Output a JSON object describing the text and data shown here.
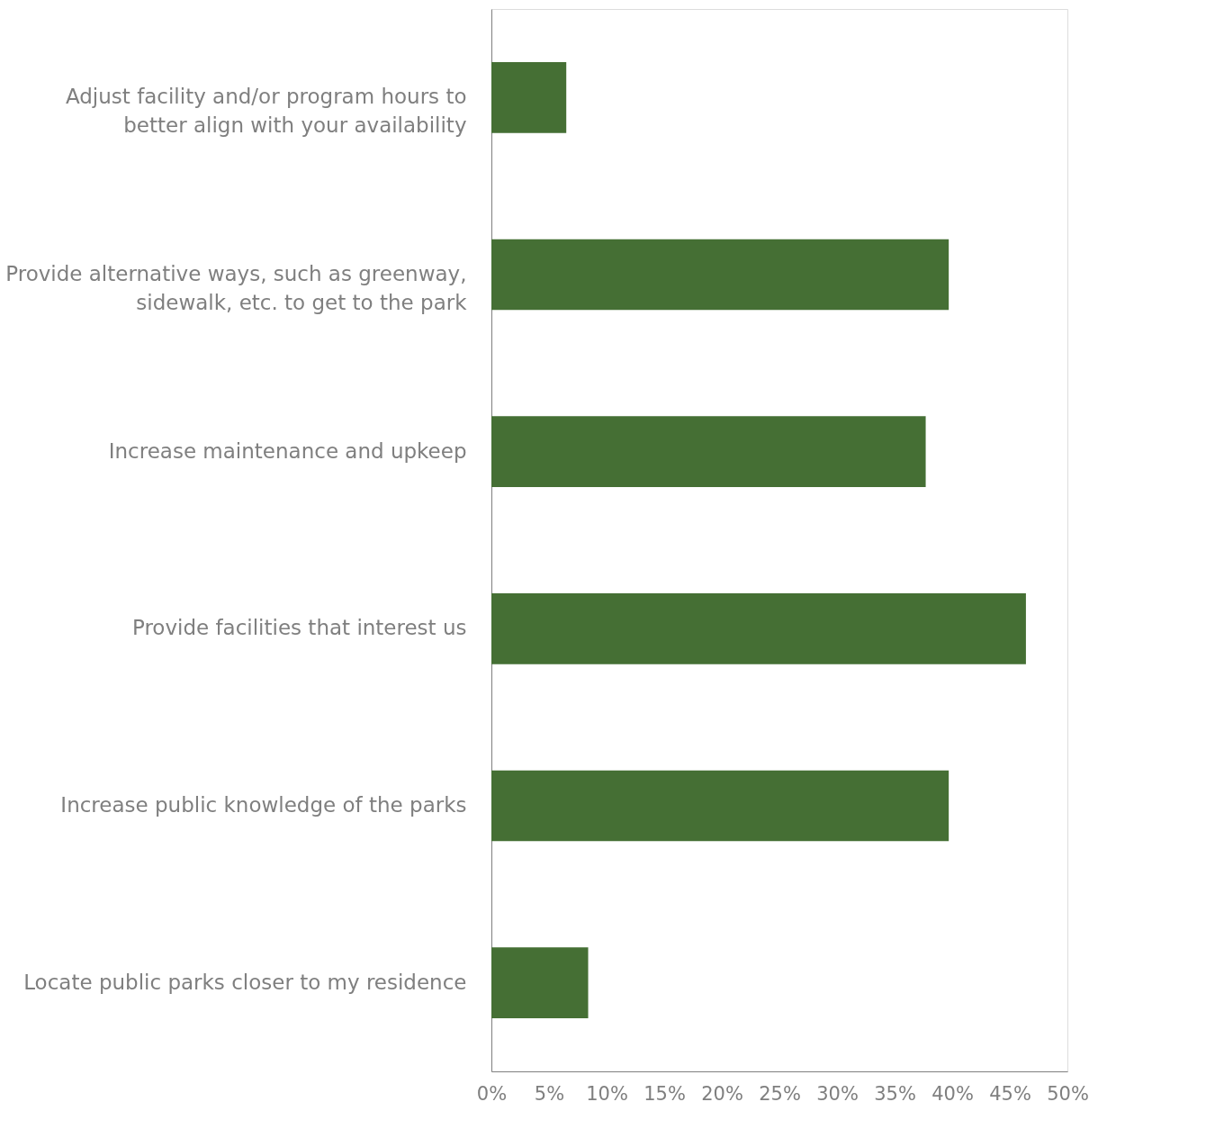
{
  "chart_data": {
    "type": "bar",
    "orientation": "horizontal",
    "categories": [
      "Adjust facility and/or program hours to better align with your availability",
      "Provide alternative ways, such as greenway, sidewalk, etc. to get to the park",
      "Increase maintenance and upkeep",
      "Provide facilities that interest us",
      "Increase public knowledge of the parks",
      "Locate public parks closer to my residence"
    ],
    "values": [
      6.5,
      39.7,
      37.7,
      46.4,
      39.7,
      8.4
    ],
    "color": "#456f34",
    "xlim": [
      0,
      50
    ],
    "xticks": [
      {
        "value": 0,
        "label": "0%"
      },
      {
        "value": 5,
        "label": "5%"
      },
      {
        "value": 10,
        "label": "10%"
      },
      {
        "value": 15,
        "label": "15%"
      },
      {
        "value": 20,
        "label": "20%"
      },
      {
        "value": 25,
        "label": "25%"
      },
      {
        "value": 30,
        "label": "30%"
      },
      {
        "value": 35,
        "label": "35%"
      },
      {
        "value": 40,
        "label": "40%"
      },
      {
        "value": 45,
        "label": "45%"
      },
      {
        "value": 50,
        "label": "50%"
      }
    ],
    "grid": false
  }
}
